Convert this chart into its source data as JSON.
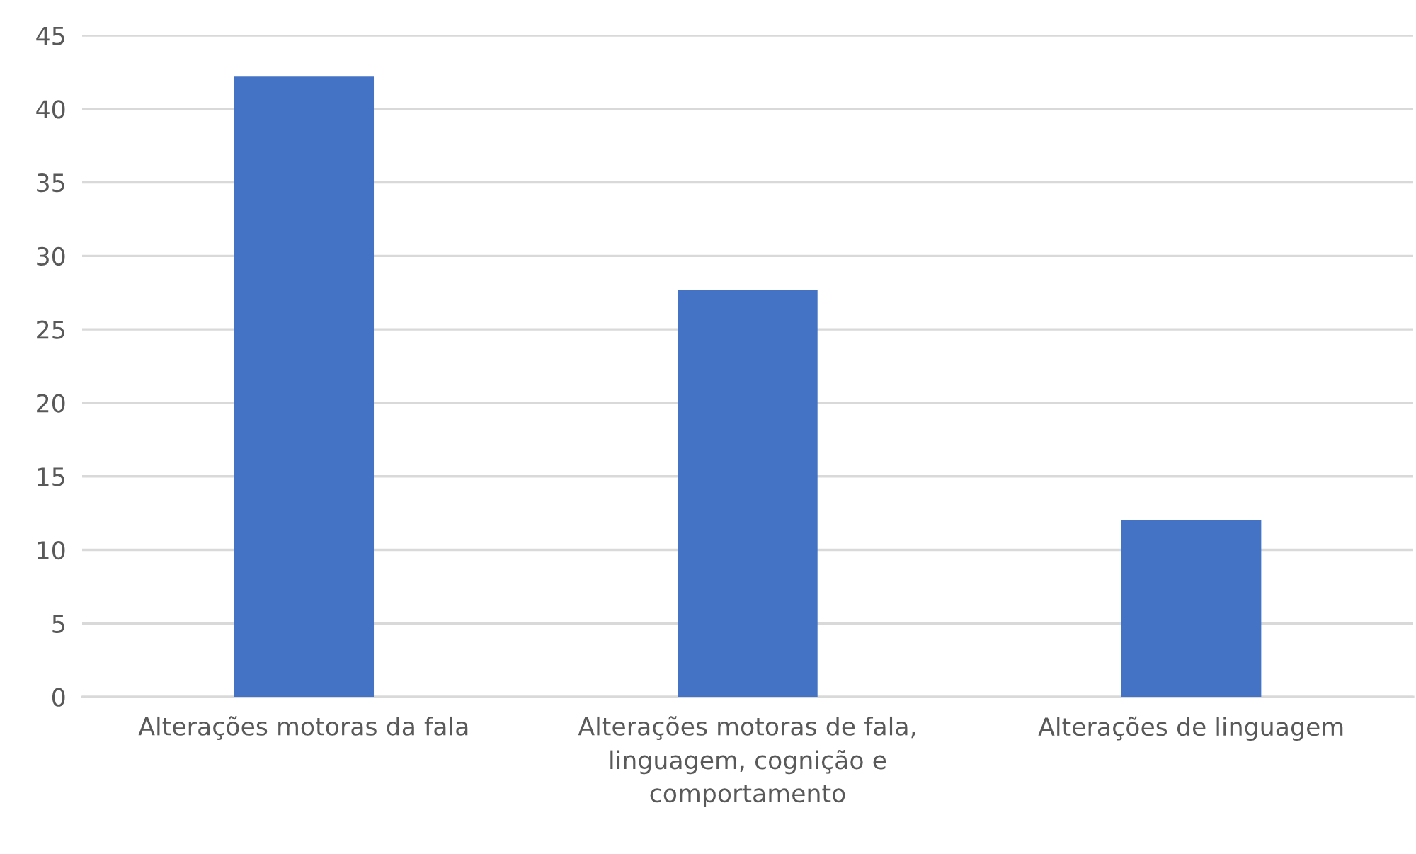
{
  "chart_data": {
    "type": "bar",
    "categories": [
      "Alterações motoras da fala",
      "Alterações motoras de fala, linguagem, cognição e comportamento",
      "Alterações de linguagem"
    ],
    "values": [
      42.2,
      27.7,
      12
    ],
    "color": "#4472c4",
    "ylim": [
      0,
      45
    ],
    "yticks": [
      0,
      5,
      10,
      15,
      20,
      25,
      30,
      35,
      40,
      45
    ],
    "grid": "y"
  }
}
